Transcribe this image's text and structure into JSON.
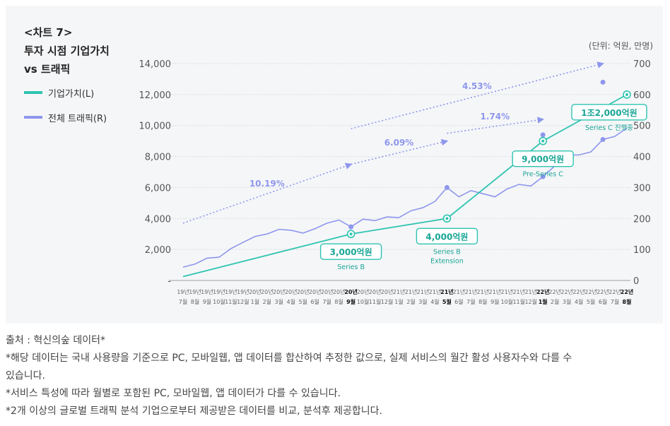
{
  "title": {
    "line1": "<차트 7>",
    "line2": "투자 시점 기업가치",
    "line3": "vs 트래픽"
  },
  "unit_label": "(단위: 억원, 만명)",
  "colors": {
    "valuation": "#2ec4b0",
    "traffic": "#8e97ec",
    "label_text_valuation": "#1aa596",
    "grid": "#c8ccd2",
    "axis_text": "#555555"
  },
  "chart_data": {
    "type": "line",
    "legend": [
      {
        "name": "기업가치(L)",
        "color": "#2ec4b0"
      },
      {
        "name": "전체 트래픽(R)",
        "color": "#8e97ec"
      }
    ],
    "left_axis": {
      "min": 0,
      "max": 14000,
      "ticks": [
        "-",
        "2,000",
        "4,000",
        "6,000",
        "8,000",
        "10,000",
        "12,000",
        "14,000"
      ]
    },
    "right_axis": {
      "min": 0,
      "max": 700,
      "ticks": [
        "0",
        "100",
        "200",
        "300",
        "400",
        "500",
        "600",
        "700"
      ]
    },
    "x_categories": [
      [
        "19년",
        "7월"
      ],
      [
        "19년",
        "8월"
      ],
      [
        "19년",
        "9월"
      ],
      [
        "19년",
        "10월"
      ],
      [
        "19년",
        "11월"
      ],
      [
        "19년",
        "12월"
      ],
      [
        "20년",
        "1월"
      ],
      [
        "20년",
        "2월"
      ],
      [
        "20년",
        "3월"
      ],
      [
        "20년",
        "4월"
      ],
      [
        "20년",
        "5월"
      ],
      [
        "20년",
        "6월"
      ],
      [
        "20년",
        "7월"
      ],
      [
        "20년",
        "8월"
      ],
      [
        "20년",
        "9월"
      ],
      [
        "20년",
        "10월"
      ],
      [
        "20년",
        "11월"
      ],
      [
        "20년",
        "12월"
      ],
      [
        "21년",
        "1월"
      ],
      [
        "21년",
        "2월"
      ],
      [
        "21년",
        "3월"
      ],
      [
        "21년",
        "4월"
      ],
      [
        "21년",
        "5월"
      ],
      [
        "21년",
        "6월"
      ],
      [
        "21년",
        "7월"
      ],
      [
        "21년",
        "8월"
      ],
      [
        "21년",
        "9월"
      ],
      [
        "21년",
        "10월"
      ],
      [
        "21년",
        "11월"
      ],
      [
        "21년",
        "12월"
      ],
      [
        "22년",
        "1월"
      ],
      [
        "22년",
        "2월"
      ],
      [
        "22년",
        "3월"
      ],
      [
        "22년",
        "4월"
      ],
      [
        "22년",
        "5월"
      ],
      [
        "22년",
        "6월"
      ],
      [
        "22년",
        "7월"
      ],
      [
        "22년",
        "8월"
      ]
    ],
    "bold_categories": [
      14,
      22,
      30,
      37
    ],
    "traffic": [
      43,
      53,
      72,
      75,
      103,
      123,
      142,
      150,
      165,
      162,
      153,
      167,
      185,
      195,
      173,
      198,
      193,
      205,
      203,
      225,
      235,
      255,
      300,
      270,
      290,
      280,
      270,
      295,
      310,
      305,
      335,
      370,
      405,
      405,
      415,
      455,
      465,
      492
    ],
    "traffic_dense_markers": [
      14,
      22,
      30,
      35
    ],
    "traffic_extra_points": [
      [
        30,
        470
      ],
      [
        35,
        640
      ]
    ],
    "valuation": [
      {
        "x": 0,
        "y": 250
      },
      {
        "x": 14,
        "y": 3000
      },
      {
        "x": 22,
        "y": 4000
      },
      {
        "x": 30,
        "y": 9000
      },
      {
        "x": 37,
        "y": 12000
      }
    ],
    "valuation_labels": [
      {
        "x": 14,
        "value": "3,000억원",
        "sub": [
          "Series B"
        ]
      },
      {
        "x": 22,
        "value": "4,000억원",
        "sub": [
          "Series B",
          "Extension"
        ]
      },
      {
        "x": 30,
        "value": "9,000억원",
        "sub": [
          "Pre-Series C"
        ]
      },
      {
        "x": 37,
        "value": "1조2,000억원",
        "sub": [
          "Series C 진행중"
        ]
      }
    ],
    "traffic_series": [
      43,
      53,
      72,
      75,
      103,
      123,
      142,
      150,
      165,
      162,
      153,
      167,
      185,
      195,
      173,
      198,
      193,
      205,
      203,
      225,
      235,
      255,
      300,
      270,
      290,
      280,
      270,
      295,
      310,
      305,
      335,
      370,
      405,
      405,
      415,
      455,
      465,
      492
    ],
    "trend_arrows": [
      {
        "label": "10.19%",
        "from": [
          0,
          3700
        ],
        "to": [
          14,
          7500
        ]
      },
      {
        "label": "6.09%",
        "from": [
          14,
          7500
        ],
        "to": [
          22,
          9000
        ]
      },
      {
        "label": "4.53%",
        "from": [
          14,
          9800
        ],
        "to": [
          35,
          14000
        ]
      },
      {
        "label": "1.74%",
        "from": [
          22,
          9500
        ],
        "to": [
          30,
          10400
        ]
      }
    ]
  },
  "notes": [
    "출처 : 혁신의숲 데이터*",
    "*해당 데이터는 국내 사용량을 기준으로 PC, 모바일웹, 앱 데이터를 합산하여 추정한 값으로, 실제 서비스의 월간 활성 사용자수와 다를 수",
    "있습니다.",
    "*서비스 특성에 따라 월별로 포함된 PC, 모바일웹, 앱 데이터가 다를 수 있습니다.",
    "*2개 이상의 글로벌 트래픽 분석 기업으로부터 제공받은 데이터를 비교, 분석후 제공합니다."
  ]
}
